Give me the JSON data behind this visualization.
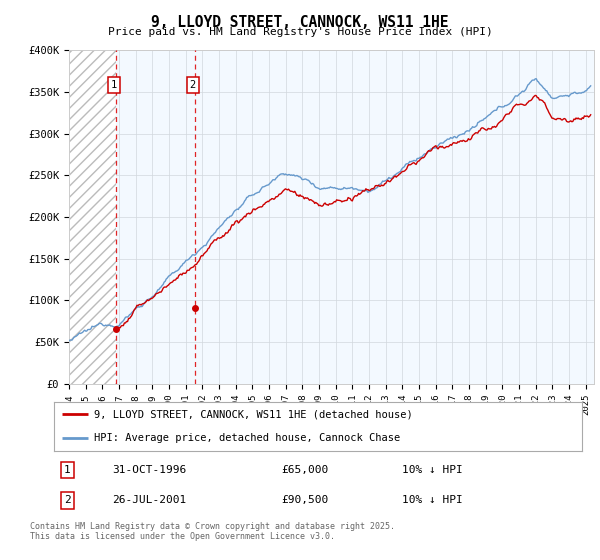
{
  "title": "9, LLOYD STREET, CANNOCK, WS11 1HE",
  "subtitle": "Price paid vs. HM Land Registry's House Price Index (HPI)",
  "ylim": [
    0,
    400000
  ],
  "yticks": [
    0,
    50000,
    100000,
    150000,
    200000,
    250000,
    300000,
    350000,
    400000
  ],
  "ytick_labels": [
    "£0",
    "£50K",
    "£100K",
    "£150K",
    "£200K",
    "£250K",
    "£300K",
    "£350K",
    "£400K"
  ],
  "xlim_start": 1994.0,
  "xlim_end": 2025.5,
  "sale1_x": 1996.833,
  "sale1_y": 65000,
  "sale2_x": 2001.575,
  "sale2_y": 90500,
  "sale1_date": "31-OCT-1996",
  "sale1_price": "£65,000",
  "sale1_hpi": "10% ↓ HPI",
  "sale2_date": "26-JUL-2001",
  "sale2_price": "£90,500",
  "sale2_hpi": "10% ↓ HPI",
  "legend_line1": "9, LLOYD STREET, CANNOCK, WS11 1HE (detached house)",
  "legend_line2": "HPI: Average price, detached house, Cannock Chase",
  "footer": "Contains HM Land Registry data © Crown copyright and database right 2025.\nThis data is licensed under the Open Government Licence v3.0.",
  "line_color_red": "#cc0000",
  "line_color_blue": "#6699cc",
  "fill_blue": "#ddeeff",
  "bg_color": "#ffffff",
  "grid_color": "#cccccc",
  "hatch_color": "#cccccc"
}
